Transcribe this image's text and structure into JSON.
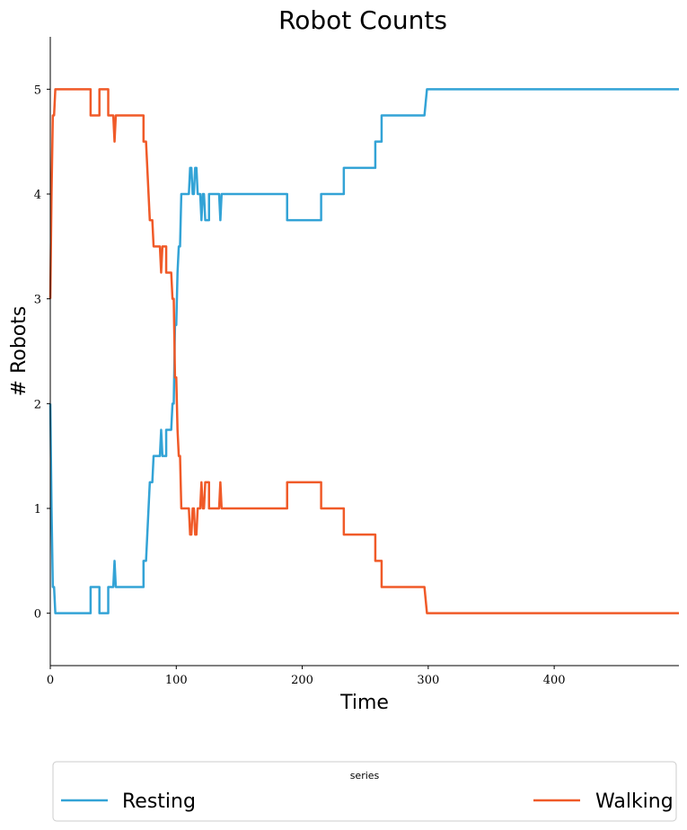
{
  "chart_data": {
    "type": "line",
    "title": "Robot Counts",
    "xlabel": "Time",
    "ylabel": "# Robots",
    "xlim": [
      0,
      499
    ],
    "ylim": [
      -0.5,
      5.5
    ],
    "xticks": [
      0,
      100,
      200,
      300,
      400
    ],
    "yticks": [
      0,
      1,
      2,
      3,
      4,
      5
    ],
    "grid": false,
    "legend": {
      "title": "series",
      "placement": "bottom"
    },
    "series": [
      {
        "name": "Resting",
        "color": "#33a3d6",
        "points": [
          [
            0,
            2
          ],
          [
            1,
            1
          ],
          [
            2,
            0.25
          ],
          [
            3,
            0.25
          ],
          [
            4,
            0
          ],
          [
            32,
            0
          ],
          [
            32,
            0.25
          ],
          [
            39,
            0.25
          ],
          [
            39,
            0
          ],
          [
            46,
            0
          ],
          [
            46,
            0.25
          ],
          [
            50,
            0.25
          ],
          [
            51,
            0.5
          ],
          [
            52,
            0.25
          ],
          [
            74,
            0.25
          ],
          [
            74,
            0.5
          ],
          [
            76,
            0.5
          ],
          [
            79,
            1.25
          ],
          [
            81,
            1.25
          ],
          [
            82,
            1.5
          ],
          [
            87,
            1.5
          ],
          [
            88,
            1.75
          ],
          [
            89,
            1.5
          ],
          [
            92,
            1.5
          ],
          [
            92,
            1.75
          ],
          [
            96,
            1.75
          ],
          [
            97,
            2
          ],
          [
            98,
            2
          ],
          [
            99,
            2.75
          ],
          [
            100,
            2.75
          ],
          [
            101,
            3.25
          ],
          [
            102,
            3.5
          ],
          [
            103,
            3.5
          ],
          [
            104,
            4
          ],
          [
            110,
            4
          ],
          [
            111,
            4.25
          ],
          [
            112,
            4.25
          ],
          [
            113,
            4
          ],
          [
            114,
            4
          ],
          [
            115,
            4.25
          ],
          [
            116,
            4.25
          ],
          [
            117,
            4
          ],
          [
            119,
            4
          ],
          [
            120,
            3.75
          ],
          [
            121,
            4
          ],
          [
            122,
            4
          ],
          [
            123,
            3.75
          ],
          [
            126,
            3.75
          ],
          [
            126,
            4
          ],
          [
            134,
            4
          ],
          [
            135,
            3.75
          ],
          [
            136,
            4
          ],
          [
            188,
            4
          ],
          [
            188,
            3.75
          ],
          [
            215,
            3.75
          ],
          [
            215,
            4
          ],
          [
            233,
            4
          ],
          [
            233,
            4.25
          ],
          [
            258,
            4.25
          ],
          [
            258,
            4.5
          ],
          [
            263,
            4.5
          ],
          [
            263,
            4.75
          ],
          [
            297,
            4.75
          ],
          [
            299,
            5
          ],
          [
            499,
            5
          ]
        ]
      },
      {
        "name": "Walking",
        "color": "#f05a28",
        "points": [
          [
            0,
            3
          ],
          [
            1,
            4
          ],
          [
            2,
            4.75
          ],
          [
            3,
            4.75
          ],
          [
            4,
            5
          ],
          [
            32,
            5
          ],
          [
            32,
            4.75
          ],
          [
            39,
            4.75
          ],
          [
            39,
            5
          ],
          [
            46,
            5
          ],
          [
            46,
            4.75
          ],
          [
            50,
            4.75
          ],
          [
            51,
            4.5
          ],
          [
            52,
            4.75
          ],
          [
            74,
            4.75
          ],
          [
            74,
            4.5
          ],
          [
            76,
            4.5
          ],
          [
            79,
            3.75
          ],
          [
            81,
            3.75
          ],
          [
            82,
            3.5
          ],
          [
            87,
            3.5
          ],
          [
            88,
            3.25
          ],
          [
            89,
            3.5
          ],
          [
            92,
            3.5
          ],
          [
            92,
            3.25
          ],
          [
            96,
            3.25
          ],
          [
            97,
            3
          ],
          [
            98,
            3
          ],
          [
            99,
            2.25
          ],
          [
            100,
            2.25
          ],
          [
            101,
            1.75
          ],
          [
            102,
            1.5
          ],
          [
            103,
            1.5
          ],
          [
            104,
            1
          ],
          [
            110,
            1
          ],
          [
            111,
            0.75
          ],
          [
            112,
            0.75
          ],
          [
            113,
            1
          ],
          [
            114,
            1
          ],
          [
            115,
            0.75
          ],
          [
            116,
            0.75
          ],
          [
            117,
            1
          ],
          [
            119,
            1
          ],
          [
            120,
            1.25
          ],
          [
            121,
            1
          ],
          [
            122,
            1
          ],
          [
            123,
            1.25
          ],
          [
            126,
            1.25
          ],
          [
            126,
            1
          ],
          [
            134,
            1
          ],
          [
            135,
            1.25
          ],
          [
            136,
            1
          ],
          [
            188,
            1
          ],
          [
            188,
            1.25
          ],
          [
            215,
            1.25
          ],
          [
            215,
            1
          ],
          [
            233,
            1
          ],
          [
            233,
            0.75
          ],
          [
            258,
            0.75
          ],
          [
            258,
            0.5
          ],
          [
            263,
            0.5
          ],
          [
            263,
            0.25
          ],
          [
            297,
            0.25
          ],
          [
            299,
            0
          ],
          [
            499,
            0
          ]
        ]
      }
    ]
  }
}
